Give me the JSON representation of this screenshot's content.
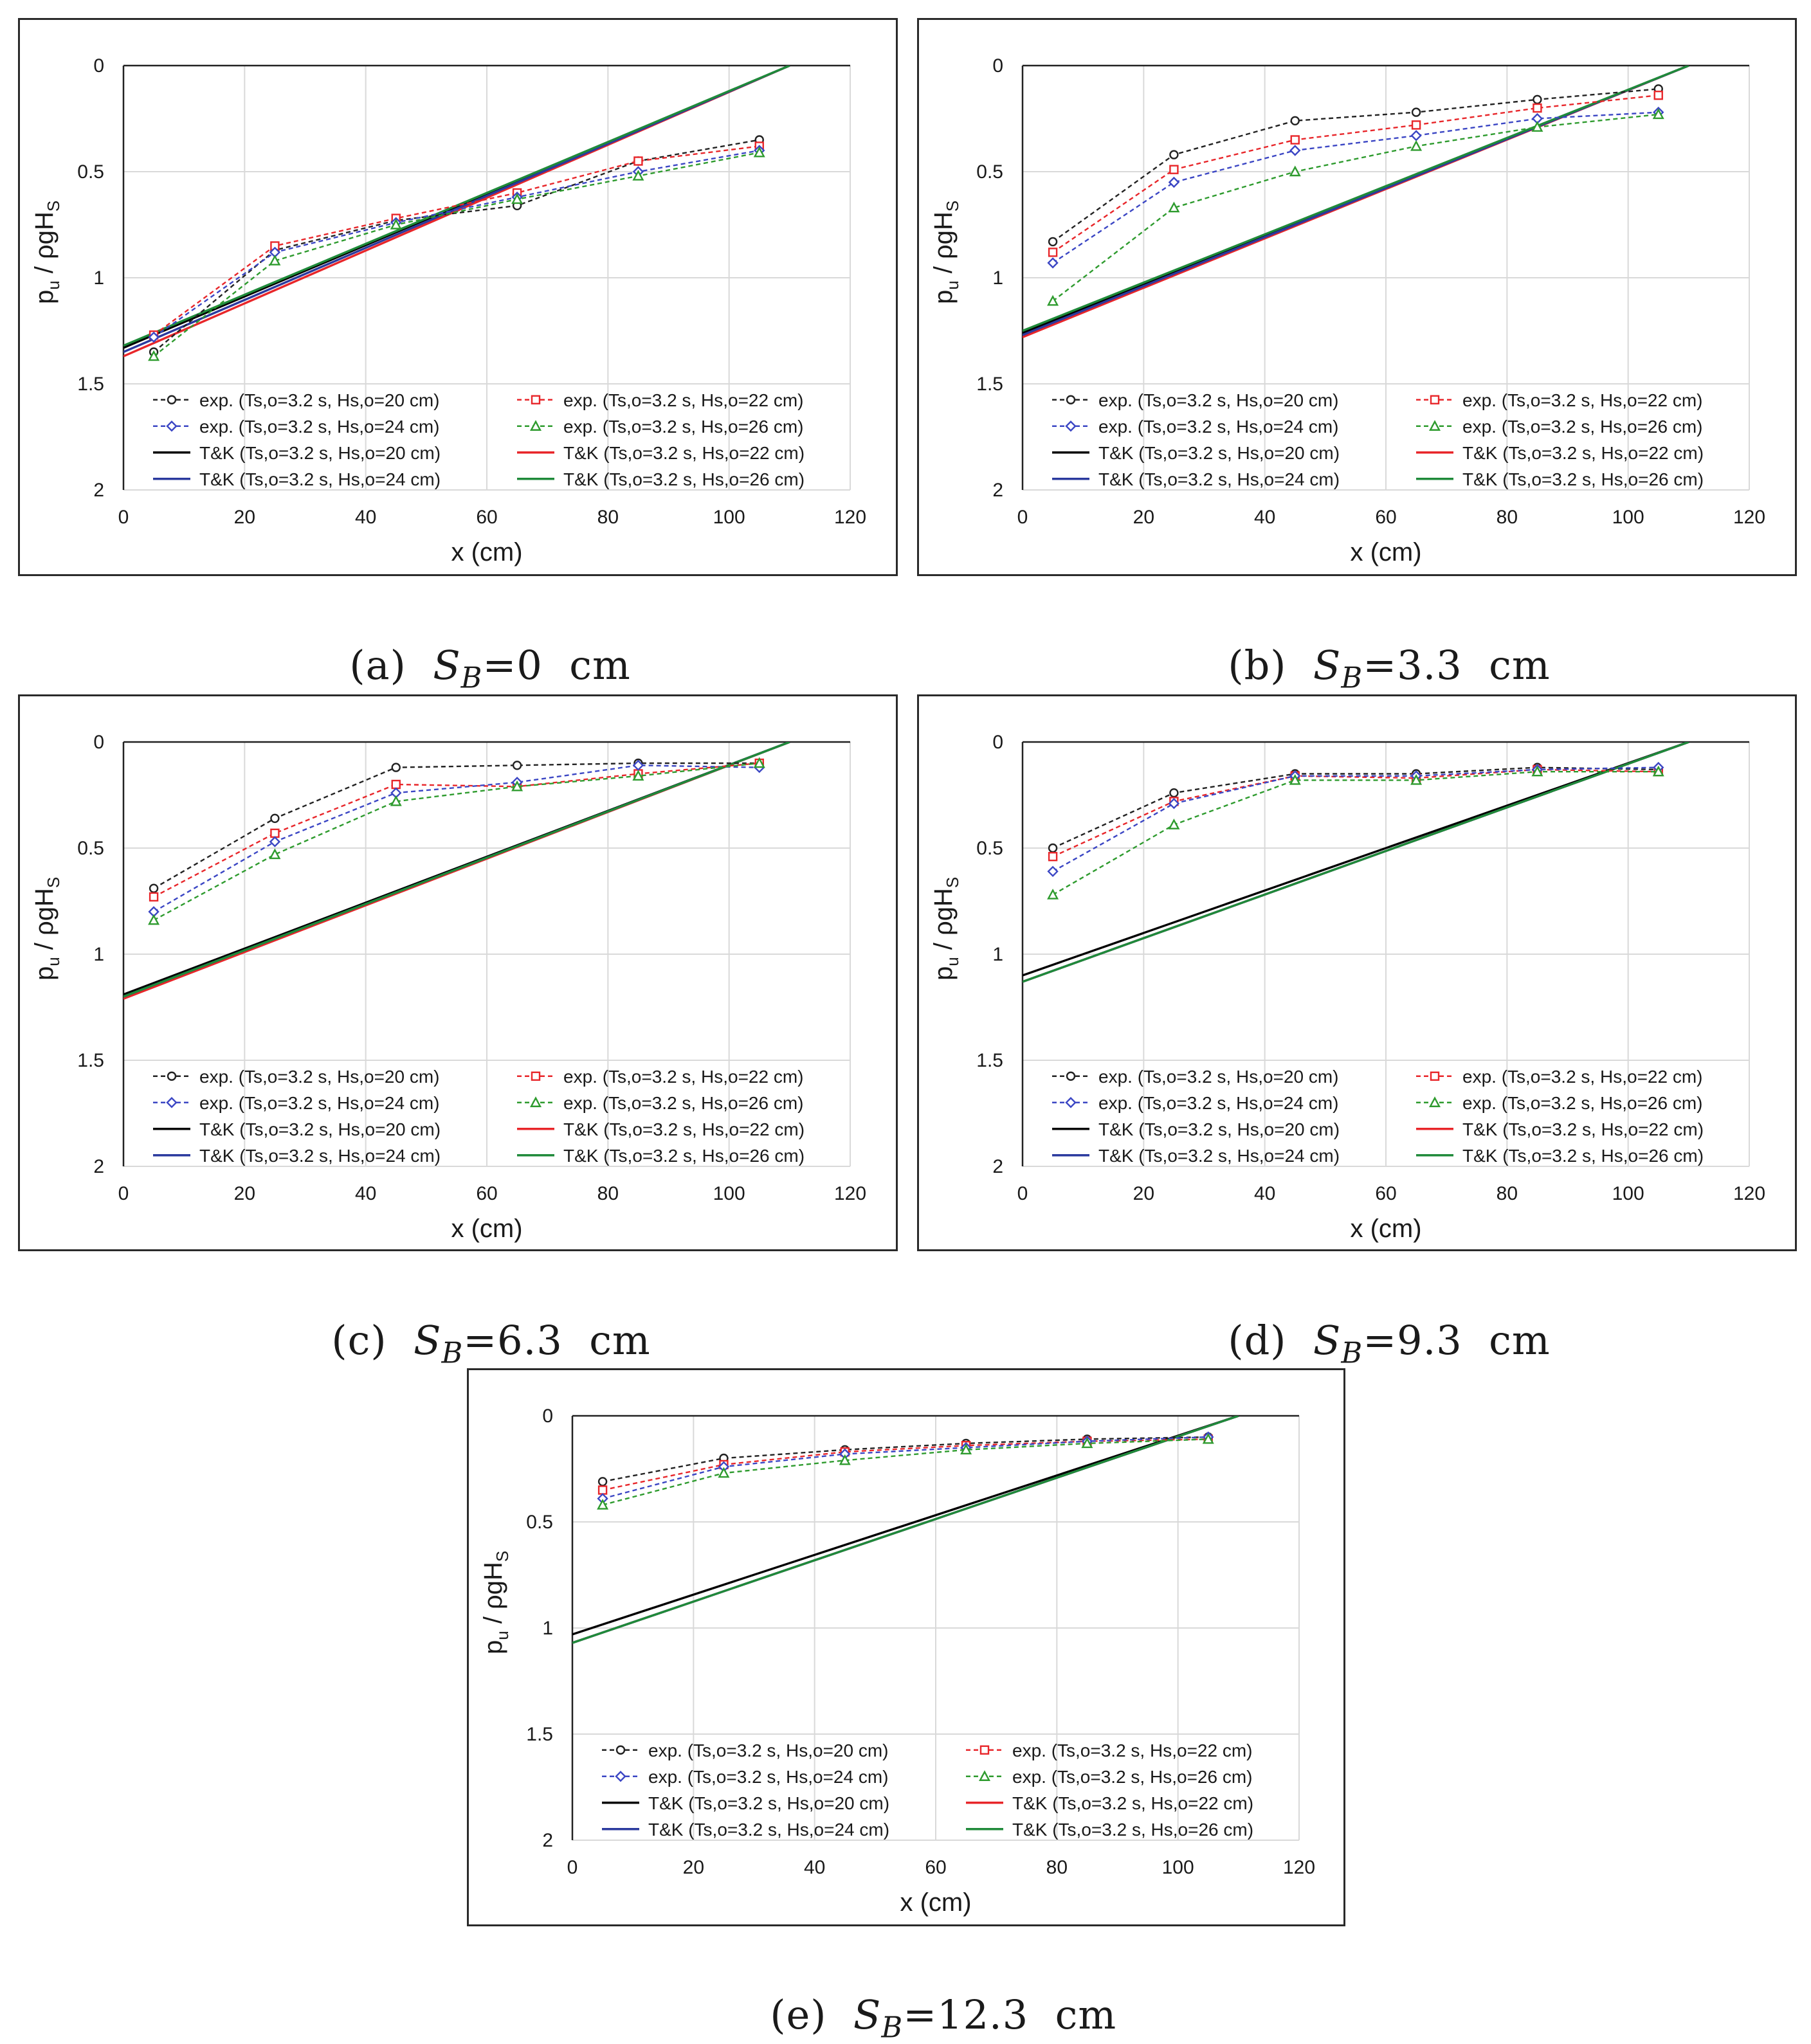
{
  "common": {
    "xlabel": "x (cm)",
    "ylabel_main": "p",
    "ylabel_sub": "u",
    "ylabel_rest": " / ρgH",
    "ylabel_sub2": "S",
    "xlim": [
      0,
      120
    ],
    "ylim": [
      0,
      2
    ],
    "xticks": [
      "0",
      "20",
      "40",
      "60",
      "80",
      "100",
      "120"
    ],
    "yticks": [
      "0",
      "0.5",
      "1",
      "1.5",
      "2"
    ],
    "legend": [
      {
        "type": "exp",
        "color": "#222222",
        "marker": "circle",
        "dash": true,
        "label": "exp.  (Ts,o=3.2 s, Hs,o=20 cm)"
      },
      {
        "type": "exp",
        "color": "#e8262a",
        "marker": "square",
        "dash": true,
        "label": "exp.  (Ts,o=3.2 s, Hs,o=22 cm)"
      },
      {
        "type": "exp",
        "color": "#3b46c4",
        "marker": "diamond",
        "dash": true,
        "label": "exp.  (Ts,o=3.2 s, Hs,o=24 cm)"
      },
      {
        "type": "exp",
        "color": "#2e9b2e",
        "marker": "triangle",
        "dash": true,
        "label": "exp.  (Ts,o=3.2 s, Hs,o=26 cm)"
      },
      {
        "type": "tk",
        "color": "#000000",
        "label": "T&K  (Ts,o=3.2 s, Hs,o=20 cm)"
      },
      {
        "type": "tk",
        "color": "#e8262a",
        "label": "T&K  (Ts,o=3.2 s, Hs,o=22 cm)"
      },
      {
        "type": "tk",
        "color": "#2b3a9e",
        "label": "T&K  (Ts,o=3.2 s, Hs,o=24 cm)"
      },
      {
        "type": "tk",
        "color": "#1f8a3a",
        "label": "T&K  (Ts,o=3.2 s, Hs,o=26 cm)"
      }
    ]
  },
  "captions": [
    {
      "prefix": "(a)  ",
      "symbol": "S",
      "sub": "B",
      "value": "=0  cm"
    },
    {
      "prefix": "(b)  ",
      "symbol": "S",
      "sub": "B",
      "value": "=3.3  cm"
    },
    {
      "prefix": "(c)  ",
      "symbol": "S",
      "sub": "B",
      "value": "=6.3  cm"
    },
    {
      "prefix": "(d)  ",
      "symbol": "S",
      "sub": "B",
      "value": "=9.3  cm"
    },
    {
      "prefix": "(e)  ",
      "symbol": "S",
      "sub": "B",
      "value": "=12.3  cm"
    }
  ],
  "chart_data": [
    {
      "type": "line",
      "title": "(a) SB=0 cm",
      "xlabel": "x (cm)",
      "ylabel": "pu / ρgHS",
      "xlim": [
        0,
        120
      ],
      "ylim": [
        0,
        2
      ],
      "y_inverted": true,
      "grid": true,
      "x": [
        5,
        25,
        45,
        65,
        85,
        105
      ],
      "series": [
        {
          "name": "exp. (Ts,o=3.2 s, Hs,o=20 cm)",
          "values": [
            1.35,
            0.87,
            0.73,
            0.66,
            0.45,
            0.35
          ]
        },
        {
          "name": "exp. (Ts,o=3.2 s, Hs,o=22 cm)",
          "values": [
            1.27,
            0.85,
            0.72,
            0.6,
            0.45,
            0.38
          ]
        },
        {
          "name": "exp. (Ts,o=3.2 s, Hs,o=24 cm)",
          "values": [
            1.28,
            0.88,
            0.74,
            0.62,
            0.5,
            0.4
          ]
        },
        {
          "name": "exp. (Ts,o=3.2 s, Hs,o=26 cm)",
          "values": [
            1.37,
            0.92,
            0.75,
            0.63,
            0.52,
            0.41
          ]
        }
      ],
      "tk_lines": [
        {
          "name": "T&K (Ts,o=3.2 s, Hs,o=20 cm)",
          "x": [
            0,
            110
          ],
          "y": [
            1.33,
            0
          ]
        },
        {
          "name": "T&K (Ts,o=3.2 s, Hs,o=22 cm)",
          "x": [
            0,
            110
          ],
          "y": [
            1.37,
            0
          ]
        },
        {
          "name": "T&K (Ts,o=3.2 s, Hs,o=24 cm)",
          "x": [
            0,
            110
          ],
          "y": [
            1.35,
            0
          ]
        },
        {
          "name": "T&K (Ts,o=3.2 s, Hs,o=26 cm)",
          "x": [
            0,
            110
          ],
          "y": [
            1.32,
            0
          ]
        }
      ]
    },
    {
      "type": "line",
      "title": "(b) SB=3.3 cm",
      "xlabel": "x (cm)",
      "ylabel": "pu / ρgHS",
      "xlim": [
        0,
        120
      ],
      "ylim": [
        0,
        2
      ],
      "y_inverted": true,
      "grid": true,
      "x": [
        5,
        25,
        45,
        65,
        85,
        105
      ],
      "series": [
        {
          "name": "exp. (Ts,o=3.2 s, Hs,o=20 cm)",
          "values": [
            0.83,
            0.42,
            0.26,
            0.22,
            0.16,
            0.11
          ]
        },
        {
          "name": "exp. (Ts,o=3.2 s, Hs,o=22 cm)",
          "values": [
            0.88,
            0.49,
            0.35,
            0.28,
            0.2,
            0.14
          ]
        },
        {
          "name": "exp. (Ts,o=3.2 s, Hs,o=24 cm)",
          "values": [
            0.93,
            0.55,
            0.4,
            0.33,
            0.25,
            0.22
          ]
        },
        {
          "name": "exp. (Ts,o=3.2 s, Hs,o=26 cm)",
          "values": [
            1.11,
            0.67,
            0.5,
            0.38,
            0.29,
            0.23
          ]
        }
      ],
      "tk_lines": [
        {
          "name": "T&K (Ts,o=3.2 s, Hs,o=20 cm)",
          "x": [
            0,
            110
          ],
          "y": [
            1.26,
            0
          ]
        },
        {
          "name": "T&K (Ts,o=3.2 s, Hs,o=22 cm)",
          "x": [
            0,
            110
          ],
          "y": [
            1.28,
            0
          ]
        },
        {
          "name": "T&K (Ts,o=3.2 s, Hs,o=24 cm)",
          "x": [
            0,
            110
          ],
          "y": [
            1.27,
            0
          ]
        },
        {
          "name": "T&K (Ts,o=3.2 s, Hs,o=26 cm)",
          "x": [
            0,
            110
          ],
          "y": [
            1.25,
            0
          ]
        }
      ]
    },
    {
      "type": "line",
      "title": "(c) SB=6.3 cm",
      "xlabel": "x (cm)",
      "ylabel": "pu / ρgHS",
      "xlim": [
        0,
        120
      ],
      "ylim": [
        0,
        2
      ],
      "y_inverted": true,
      "grid": true,
      "x": [
        5,
        25,
        45,
        65,
        85,
        105
      ],
      "series": [
        {
          "name": "exp. (Ts,o=3.2 s, Hs,o=20 cm)",
          "values": [
            0.69,
            0.36,
            0.12,
            0.11,
            0.1,
            0.1
          ]
        },
        {
          "name": "exp. (Ts,o=3.2 s, Hs,o=22 cm)",
          "values": [
            0.73,
            0.43,
            0.2,
            0.21,
            0.15,
            0.1
          ]
        },
        {
          "name": "exp. (Ts,o=3.2 s, Hs,o=24 cm)",
          "values": [
            0.8,
            0.47,
            0.24,
            0.19,
            0.11,
            0.12
          ]
        },
        {
          "name": "exp. (Ts,o=3.2 s, Hs,o=26 cm)",
          "values": [
            0.84,
            0.53,
            0.28,
            0.21,
            0.16,
            0.1
          ]
        }
      ],
      "tk_lines": [
        {
          "name": "T&K (Ts,o=3.2 s, Hs,o=20 cm)",
          "x": [
            0,
            110
          ],
          "y": [
            1.19,
            0
          ]
        },
        {
          "name": "T&K (Ts,o=3.2 s, Hs,o=22 cm)",
          "x": [
            0,
            110
          ],
          "y": [
            1.21,
            0
          ]
        },
        {
          "name": "T&K (Ts,o=3.2 s, Hs,o=24 cm)",
          "x": [
            0,
            110
          ],
          "y": [
            1.2,
            0
          ]
        },
        {
          "name": "T&K (Ts,o=3.2 s, Hs,o=26 cm)",
          "x": [
            0,
            110
          ],
          "y": [
            1.2,
            0
          ]
        }
      ]
    },
    {
      "type": "line",
      "title": "(d) SB=9.3 cm",
      "xlabel": "x (cm)",
      "ylabel": "pu / ρgHS",
      "xlim": [
        0,
        120
      ],
      "ylim": [
        0,
        2
      ],
      "y_inverted": true,
      "grid": true,
      "x": [
        5,
        25,
        45,
        65,
        85,
        105
      ],
      "series": [
        {
          "name": "exp. (Ts,o=3.2 s, Hs,o=20 cm)",
          "values": [
            0.5,
            0.24,
            0.15,
            0.15,
            0.12,
            0.13
          ]
        },
        {
          "name": "exp. (Ts,o=3.2 s, Hs,o=22 cm)",
          "values": [
            0.54,
            0.28,
            0.16,
            0.17,
            0.13,
            0.14
          ]
        },
        {
          "name": "exp. (Ts,o=3.2 s, Hs,o=24 cm)",
          "values": [
            0.61,
            0.29,
            0.16,
            0.16,
            0.13,
            0.12
          ]
        },
        {
          "name": "exp. (Ts,o=3.2 s, Hs,o=26 cm)",
          "values": [
            0.72,
            0.39,
            0.18,
            0.18,
            0.14,
            0.14
          ]
        }
      ],
      "tk_lines": [
        {
          "name": "T&K (Ts,o=3.2 s, Hs,o=20 cm)",
          "x": [
            0,
            110
          ],
          "y": [
            1.1,
            0
          ]
        },
        {
          "name": "T&K (Ts,o=3.2 s, Hs,o=22 cm)",
          "x": [
            0,
            110
          ],
          "y": [
            1.13,
            0
          ]
        },
        {
          "name": "T&K (Ts,o=3.2 s, Hs,o=24 cm)",
          "x": [
            0,
            110
          ],
          "y": [
            1.13,
            0
          ]
        },
        {
          "name": "T&K (Ts,o=3.2 s, Hs,o=26 cm)",
          "x": [
            0,
            110
          ],
          "y": [
            1.13,
            0
          ]
        }
      ]
    },
    {
      "type": "line",
      "title": "(e) SB=12.3 cm",
      "xlabel": "x (cm)",
      "ylabel": "pu / ρgHS",
      "xlim": [
        0,
        120
      ],
      "ylim": [
        0,
        2
      ],
      "y_inverted": true,
      "grid": true,
      "x": [
        5,
        25,
        45,
        65,
        85,
        105
      ],
      "series": [
        {
          "name": "exp. (Ts,o=3.2 s, Hs,o=20 cm)",
          "values": [
            0.31,
            0.2,
            0.16,
            0.13,
            0.11,
            0.1
          ]
        },
        {
          "name": "exp. (Ts,o=3.2 s, Hs,o=22 cm)",
          "values": [
            0.35,
            0.23,
            0.17,
            0.14,
            0.12,
            0.11
          ]
        },
        {
          "name": "exp. (Ts,o=3.2 s, Hs,o=24 cm)",
          "values": [
            0.39,
            0.24,
            0.18,
            0.15,
            0.12,
            0.1
          ]
        },
        {
          "name": "exp. (Ts,o=3.2 s, Hs,o=26 cm)",
          "values": [
            0.42,
            0.27,
            0.21,
            0.16,
            0.13,
            0.11
          ]
        }
      ],
      "tk_lines": [
        {
          "name": "T&K (Ts,o=3.2 s, Hs,o=20 cm)",
          "x": [
            0,
            110
          ],
          "y": [
            1.03,
            0
          ]
        },
        {
          "name": "T&K (Ts,o=3.2 s, Hs,o=22 cm)",
          "x": [
            0,
            110
          ],
          "y": [
            1.07,
            0
          ]
        },
        {
          "name": "T&K (Ts,o=3.2 s, Hs,o=24 cm)",
          "x": [
            0,
            110
          ],
          "y": [
            1.07,
            0
          ]
        },
        {
          "name": "T&K (Ts,o=3.2 s, Hs,o=26 cm)",
          "x": [
            0,
            110
          ],
          "y": [
            1.07,
            0
          ]
        }
      ]
    }
  ]
}
